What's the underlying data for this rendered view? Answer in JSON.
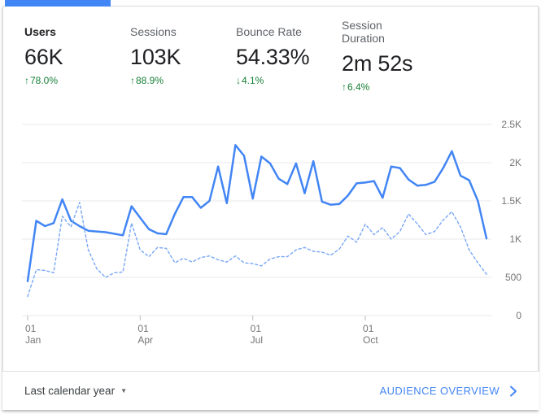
{
  "card": {
    "accent_color": "#4285f4",
    "border_color": "#dadce0"
  },
  "metrics": {
    "delta_color": "#188038",
    "tabs": [
      {
        "label": "Users",
        "value": "66K",
        "arrow": "↑",
        "delta": "78.0%",
        "selected": true
      },
      {
        "label": "Sessions",
        "value": "103K",
        "arrow": "↑",
        "delta": "88.9%",
        "selected": false
      },
      {
        "label": "Bounce Rate",
        "value": "54.33%",
        "arrow": "↓",
        "delta": "4.1%",
        "selected": false
      },
      {
        "label": "Session Duration",
        "value": "2m 52s",
        "arrow": "↑",
        "delta": "6.4%",
        "selected": false
      }
    ]
  },
  "chart_data": {
    "type": "line",
    "title": "",
    "xlabel": "",
    "ylabel": "",
    "ylim": [
      0,
      2500
    ],
    "grid": "horizontal",
    "grid_color": "#e8e8e8",
    "tick_color": "#bdbdbd",
    "axis_label_color": "#757575",
    "legend": "none",
    "y_ticks": [
      {
        "value": 0,
        "label": "0"
      },
      {
        "value": 500,
        "label": "500"
      },
      {
        "value": 1000,
        "label": "1K"
      },
      {
        "value": 1500,
        "label": "1.5K"
      },
      {
        "value": 2000,
        "label": "2K"
      },
      {
        "value": 2500,
        "label": "2.5K"
      }
    ],
    "x_ticks": [
      {
        "index": 0,
        "day": "01",
        "month": "Jan"
      },
      {
        "index": 13,
        "day": "01",
        "month": "Apr"
      },
      {
        "index": 26,
        "day": "01",
        "month": "Jul"
      },
      {
        "index": 39,
        "day": "01",
        "month": "Oct"
      }
    ],
    "series": [
      {
        "name": "current-period",
        "style": "solid",
        "color": "#4285f4",
        "width": 2.5,
        "values": [
          450,
          1240,
          1170,
          1210,
          1520,
          1240,
          1170,
          1110,
          1100,
          1090,
          1070,
          1050,
          1430,
          1280,
          1130,
          1075,
          1065,
          1330,
          1550,
          1550,
          1410,
          1500,
          1950,
          1470,
          2230,
          2090,
          1530,
          2080,
          1990,
          1790,
          1720,
          1990,
          1600,
          2020,
          1490,
          1450,
          1460,
          1570,
          1730,
          1740,
          1760,
          1540,
          1950,
          1930,
          1780,
          1700,
          1710,
          1750,
          1930,
          2150,
          1830,
          1770,
          1500,
          1010
        ]
      },
      {
        "name": "previous-period",
        "style": "dashed",
        "color": "#78a7f5",
        "width": 1.4,
        "values": [
          250,
          600,
          590,
          560,
          1300,
          1160,
          1480,
          860,
          610,
          500,
          560,
          570,
          1210,
          860,
          770,
          890,
          880,
          690,
          750,
          700,
          760,
          780,
          730,
          700,
          780,
          690,
          680,
          650,
          740,
          770,
          770,
          860,
          890,
          840,
          830,
          790,
          870,
          1040,
          960,
          1195,
          1060,
          1150,
          1000,
          1100,
          1330,
          1200,
          1060,
          1100,
          1250,
          1360,
          1160,
          860,
          690,
          540
        ]
      }
    ]
  },
  "footer": {
    "date_range": "Last calendar year",
    "caret_icon": "▼",
    "link": "AUDIENCE OVERVIEW",
    "link_color": "#4285f4"
  }
}
